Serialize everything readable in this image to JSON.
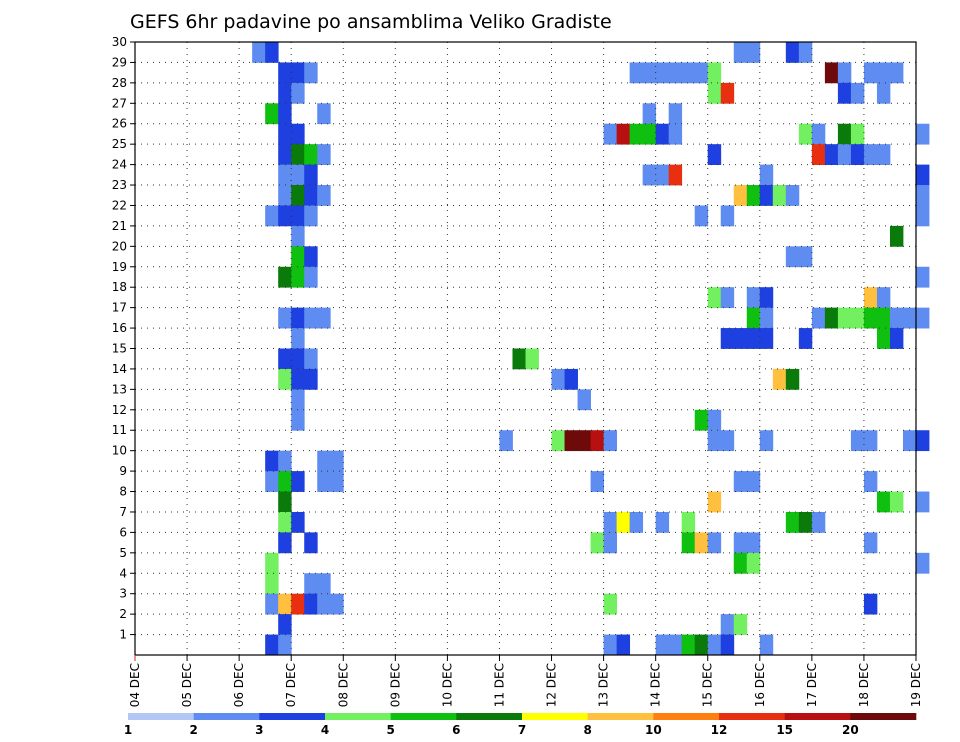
{
  "chart_data": {
    "type": "heatmap",
    "title": "GEFS 6hr padavine po ansamblima Veliko Gradiste",
    "x_tick_labels": [
      "04 DEC",
      "05 DEC",
      "06 DEC",
      "07 DEC",
      "08 DEC",
      "09 DEC",
      "10 DEC",
      "11 DEC",
      "12 DEC",
      "13 DEC",
      "14 DEC",
      "15 DEC",
      "16 DEC",
      "17 DEC",
      "18 DEC",
      "19 DEC"
    ],
    "y_tick_labels": [
      "1",
      "2",
      "3",
      "4",
      "5",
      "6",
      "7",
      "8",
      "9",
      "10",
      "11",
      "12",
      "13",
      "14",
      "15",
      "16",
      "17",
      "18",
      "19",
      "20",
      "21",
      "22",
      "23",
      "24",
      "25",
      "26",
      "27",
      "28",
      "29",
      "30"
    ],
    "x_range_days": [
      0,
      15
    ],
    "y_range_members": [
      0,
      30
    ],
    "steps_per_day": 4,
    "grid": true,
    "colorbar": {
      "labels": [
        "1",
        "2",
        "3",
        "4",
        "5",
        "6",
        "7",
        "8",
        "10",
        "12",
        "15",
        "20"
      ],
      "colors": [
        "#b3c7f7",
        "#5f8cf0",
        "#1e40e0",
        "#72f060",
        "#10c010",
        "#0a7a0a",
        "#ffff00",
        "#ffc040",
        "#ff8010",
        "#e83010",
        "#b81010",
        "#6e0a0a"
      ]
    },
    "cells": [
      [
        30,
        9,
        1
      ],
      [
        30,
        10,
        2
      ],
      [
        30,
        46,
        1
      ],
      [
        30,
        47,
        1
      ],
      [
        30,
        50,
        2
      ],
      [
        30,
        51,
        1
      ],
      [
        29,
        11,
        2
      ],
      [
        29,
        12,
        2
      ],
      [
        29,
        13,
        1
      ],
      [
        29,
        38,
        1
      ],
      [
        29,
        39,
        1
      ],
      [
        29,
        40,
        1
      ],
      [
        29,
        41,
        1
      ],
      [
        29,
        42,
        1
      ],
      [
        29,
        43,
        1
      ],
      [
        29,
        44,
        3
      ],
      [
        29,
        53,
        11
      ],
      [
        29,
        54,
        1
      ],
      [
        29,
        56,
        1
      ],
      [
        29,
        57,
        1
      ],
      [
        29,
        58,
        1
      ],
      [
        28,
        11,
        2
      ],
      [
        28,
        12,
        1
      ],
      [
        28,
        44,
        3
      ],
      [
        28,
        45,
        9
      ],
      [
        28,
        54,
        2
      ],
      [
        28,
        55,
        1
      ],
      [
        28,
        57,
        1
      ],
      [
        27,
        10,
        4
      ],
      [
        27,
        11,
        2
      ],
      [
        27,
        14,
        1
      ],
      [
        27,
        39,
        1
      ],
      [
        27,
        41,
        1
      ],
      [
        26,
        11,
        2
      ],
      [
        26,
        12,
        2
      ],
      [
        26,
        36,
        1
      ],
      [
        26,
        37,
        10
      ],
      [
        26,
        38,
        4
      ],
      [
        26,
        39,
        4
      ],
      [
        26,
        40,
        2
      ],
      [
        26,
        41,
        1
      ],
      [
        26,
        51,
        3
      ],
      [
        26,
        52,
        1
      ],
      [
        26,
        54,
        5
      ],
      [
        26,
        55,
        3
      ],
      [
        26,
        60,
        1
      ],
      [
        25,
        11,
        2
      ],
      [
        25,
        12,
        5
      ],
      [
        25,
        13,
        4
      ],
      [
        25,
        14,
        1
      ],
      [
        25,
        44,
        2
      ],
      [
        25,
        52,
        9
      ],
      [
        25,
        53,
        2
      ],
      [
        25,
        54,
        1
      ],
      [
        25,
        55,
        2
      ],
      [
        25,
        56,
        1
      ],
      [
        25,
        57,
        1
      ],
      [
        24,
        11,
        1
      ],
      [
        24,
        12,
        1
      ],
      [
        24,
        13,
        2
      ],
      [
        24,
        39,
        1
      ],
      [
        24,
        40,
        1
      ],
      [
        24,
        41,
        9
      ],
      [
        24,
        48,
        1
      ],
      [
        24,
        60,
        2
      ],
      [
        23,
        11,
        1
      ],
      [
        23,
        12,
        5
      ],
      [
        23,
        13,
        2
      ],
      [
        23,
        14,
        1
      ],
      [
        23,
        46,
        7
      ],
      [
        23,
        47,
        4
      ],
      [
        23,
        48,
        2
      ],
      [
        23,
        49,
        3
      ],
      [
        23,
        50,
        1
      ],
      [
        23,
        60,
        1
      ],
      [
        22,
        10,
        1
      ],
      [
        22,
        11,
        2
      ],
      [
        22,
        12,
        2
      ],
      [
        22,
        13,
        1
      ],
      [
        22,
        43,
        1
      ],
      [
        22,
        45,
        1
      ],
      [
        22,
        60,
        1
      ],
      [
        21,
        12,
        1
      ],
      [
        21,
        58,
        5
      ],
      [
        20,
        12,
        4
      ],
      [
        20,
        13,
        2
      ],
      [
        20,
        50,
        1
      ],
      [
        20,
        51,
        1
      ],
      [
        19,
        11,
        5
      ],
      [
        19,
        12,
        4
      ],
      [
        19,
        13,
        1
      ],
      [
        19,
        60,
        1
      ],
      [
        18,
        44,
        3
      ],
      [
        18,
        45,
        1
      ],
      [
        18,
        47,
        1
      ],
      [
        18,
        48,
        2
      ],
      [
        18,
        56,
        7
      ],
      [
        18,
        57,
        1
      ],
      [
        17,
        11,
        1
      ],
      [
        17,
        12,
        2
      ],
      [
        17,
        13,
        1
      ],
      [
        17,
        14,
        1
      ],
      [
        17,
        47,
        4
      ],
      [
        17,
        48,
        1
      ],
      [
        17,
        52,
        1
      ],
      [
        17,
        53,
        5
      ],
      [
        17,
        54,
        3
      ],
      [
        17,
        55,
        3
      ],
      [
        17,
        56,
        4
      ],
      [
        17,
        57,
        4
      ],
      [
        17,
        58,
        1
      ],
      [
        17,
        59,
        1
      ],
      [
        17,
        60,
        1
      ],
      [
        16,
        12,
        1
      ],
      [
        16,
        45,
        2
      ],
      [
        16,
        46,
        2
      ],
      [
        16,
        47,
        2
      ],
      [
        16,
        48,
        2
      ],
      [
        16,
        51,
        2
      ],
      [
        16,
        57,
        4
      ],
      [
        16,
        58,
        2
      ],
      [
        15,
        11,
        2
      ],
      [
        15,
        12,
        2
      ],
      [
        15,
        13,
        1
      ],
      [
        15,
        29,
        5
      ],
      [
        15,
        30,
        3
      ],
      [
        14,
        11,
        3
      ],
      [
        14,
        12,
        2
      ],
      [
        14,
        13,
        2
      ],
      [
        14,
        32,
        1
      ],
      [
        14,
        33,
        2
      ],
      [
        14,
        49,
        7
      ],
      [
        14,
        50,
        5
      ],
      [
        13,
        12,
        1
      ],
      [
        13,
        34,
        1
      ],
      [
        12,
        12,
        1
      ],
      [
        12,
        43,
        4
      ],
      [
        12,
        44,
        1
      ],
      [
        11,
        28,
        1
      ],
      [
        11,
        32,
        3
      ],
      [
        11,
        33,
        11
      ],
      [
        11,
        34,
        11
      ],
      [
        11,
        35,
        10
      ],
      [
        11,
        36,
        1
      ],
      [
        11,
        44,
        1
      ],
      [
        11,
        45,
        1
      ],
      [
        11,
        48,
        1
      ],
      [
        11,
        55,
        1
      ],
      [
        11,
        56,
        1
      ],
      [
        11,
        59,
        1
      ],
      [
        11,
        60,
        2
      ],
      [
        10,
        10,
        2
      ],
      [
        10,
        11,
        1
      ],
      [
        10,
        14,
        1
      ],
      [
        10,
        15,
        1
      ],
      [
        9,
        10,
        1
      ],
      [
        9,
        11,
        4
      ],
      [
        9,
        12,
        2
      ],
      [
        9,
        14,
        1
      ],
      [
        9,
        15,
        1
      ],
      [
        9,
        35,
        1
      ],
      [
        9,
        46,
        1
      ],
      [
        9,
        47,
        1
      ],
      [
        9,
        56,
        1
      ],
      [
        8,
        11,
        5
      ],
      [
        8,
        44,
        7
      ],
      [
        8,
        57,
        4
      ],
      [
        8,
        58,
        3
      ],
      [
        8,
        60,
        1
      ],
      [
        7,
        11,
        3
      ],
      [
        7,
        12,
        2
      ],
      [
        7,
        36,
        1
      ],
      [
        7,
        37,
        6
      ],
      [
        7,
        38,
        1
      ],
      [
        7,
        40,
        1
      ],
      [
        7,
        42,
        3
      ],
      [
        7,
        50,
        4
      ],
      [
        7,
        51,
        5
      ],
      [
        7,
        52,
        1
      ],
      [
        6,
        11,
        2
      ],
      [
        6,
        13,
        2
      ],
      [
        6,
        35,
        3
      ],
      [
        6,
        36,
        1
      ],
      [
        6,
        42,
        4
      ],
      [
        6,
        43,
        7
      ],
      [
        6,
        44,
        1
      ],
      [
        6,
        46,
        1
      ],
      [
        6,
        47,
        1
      ],
      [
        6,
        56,
        1
      ],
      [
        5,
        10,
        3
      ],
      [
        5,
        46,
        4
      ],
      [
        5,
        47,
        3
      ],
      [
        5,
        60,
        1
      ],
      [
        4,
        10,
        3
      ],
      [
        4,
        13,
        1
      ],
      [
        4,
        14,
        1
      ],
      [
        3,
        10,
        1
      ],
      [
        3,
        11,
        7
      ],
      [
        3,
        12,
        9
      ],
      [
        3,
        13,
        2
      ],
      [
        3,
        14,
        1
      ],
      [
        3,
        15,
        1
      ],
      [
        3,
        36,
        3
      ],
      [
        3,
        56,
        2
      ],
      [
        2,
        11,
        2
      ],
      [
        2,
        45,
        1
      ],
      [
        2,
        46,
        3
      ],
      [
        1,
        10,
        2
      ],
      [
        1,
        11,
        1
      ],
      [
        1,
        36,
        1
      ],
      [
        1,
        37,
        2
      ],
      [
        1,
        40,
        1
      ],
      [
        1,
        41,
        1
      ],
      [
        1,
        42,
        4
      ],
      [
        1,
        43,
        5
      ],
      [
        1,
        44,
        1
      ],
      [
        1,
        45,
        2
      ],
      [
        1,
        48,
        1
      ]
    ]
  }
}
